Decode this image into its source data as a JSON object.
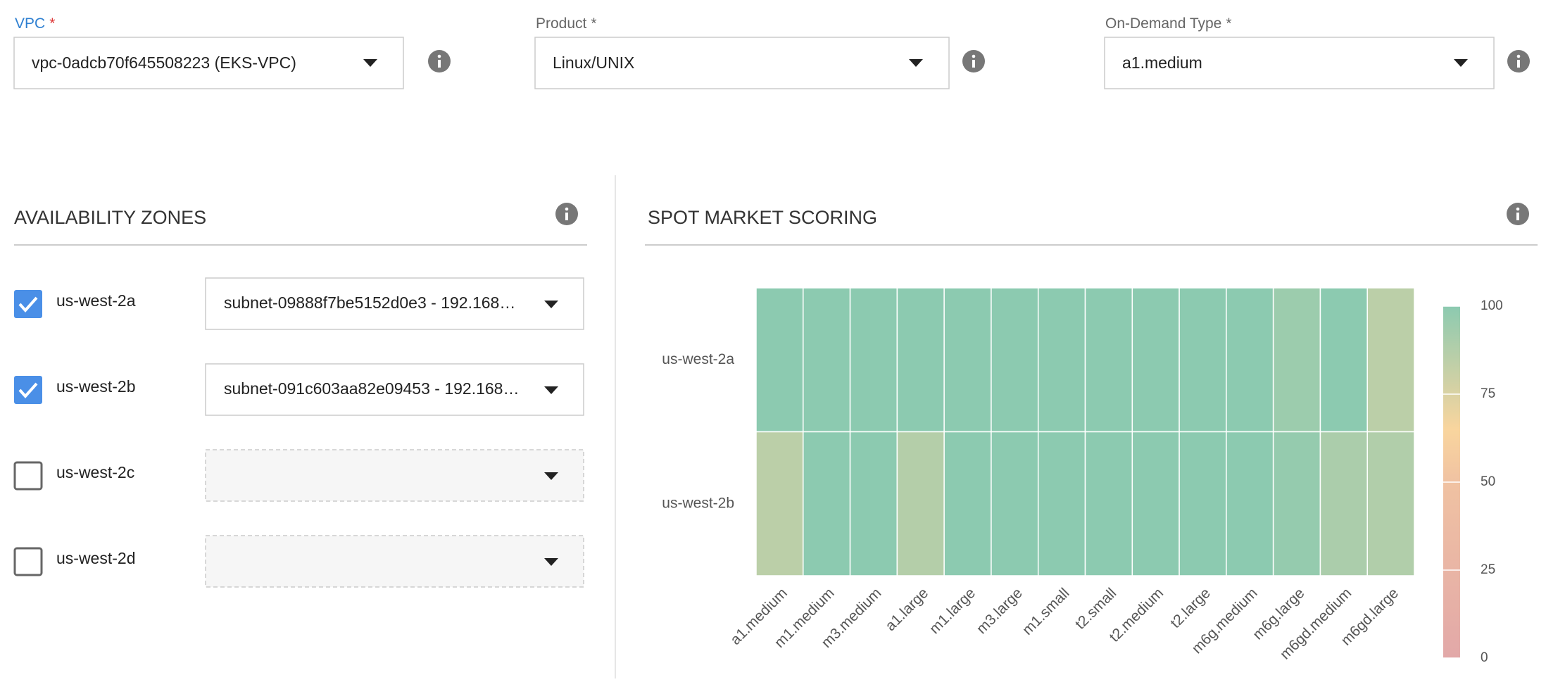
{
  "form": {
    "fields": [
      {
        "label": "VPC",
        "required_mark": "*",
        "value": "vpc-0adcb70f645508223 (EKS-VPC)"
      },
      {
        "label": "Product",
        "required_mark": "*",
        "value": "Linux/UNIX"
      },
      {
        "label": "On-Demand Type",
        "required_mark": "*",
        "value": "a1.medium"
      }
    ]
  },
  "availability_zones": {
    "title": "AVAILABILITY ZONES",
    "zones": [
      {
        "name": "us-west-2a",
        "checked": true,
        "subnet": "subnet-09888f7be5152d0e3 - 192.168…"
      },
      {
        "name": "us-west-2b",
        "checked": true,
        "subnet": "subnet-091c603aa82e09453 - 192.168…"
      },
      {
        "name": "us-west-2c",
        "checked": false
      },
      {
        "name": "us-west-2d",
        "checked": false
      }
    ]
  },
  "chart_data": {
    "type": "heatmap",
    "title": "SPOT MARKET SCORING",
    "x": [
      "a1.medium",
      "m1.medium",
      "m3.medium",
      "a1.large",
      "m1.large",
      "m3.large",
      "m1.small",
      "t2.small",
      "t2.medium",
      "t2.large",
      "m6g.medium",
      "m6g.large",
      "m6gd.medium",
      "m6gd.large"
    ],
    "y": [
      "us-west-2a",
      "us-west-2b"
    ],
    "values": [
      [
        100,
        100,
        100,
        100,
        100,
        100,
        100,
        100,
        100,
        100,
        100,
        95,
        100,
        85
      ],
      [
        85,
        100,
        100,
        87,
        100,
        100,
        100,
        100,
        100,
        100,
        100,
        97,
        90,
        88
      ]
    ],
    "zlim": [
      0,
      100
    ],
    "zticks": [
      0,
      25,
      50,
      75,
      100
    ],
    "colorscale": [
      [
        0,
        "#e2a8a8"
      ],
      [
        0.5,
        "#f0c2a2"
      ],
      [
        0.65,
        "#f9d59e"
      ],
      [
        1,
        "#8ccab0"
      ]
    ]
  }
}
